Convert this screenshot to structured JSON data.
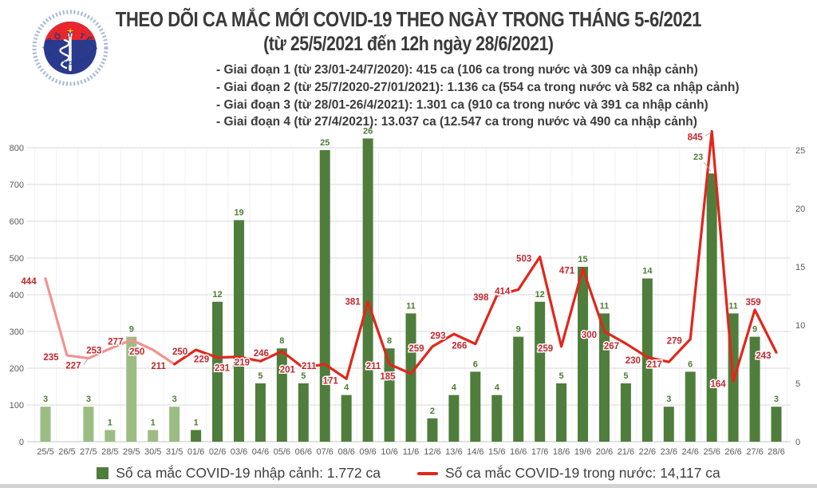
{
  "header": {
    "logo": {
      "top_text": "BỘ Y TẾ",
      "bottom_text": "MINISTRY OF HEALTH"
    },
    "title_line1": "THEO DÕI CA MẮC MỚI COVID-19 THEO NGÀY TRONG THÁNG 5-6/2021",
    "title_line2": "(từ 25/5/2021 đến 12h ngày 28/6/2021)",
    "phases": [
      "- Giai đoạn 1 (từ 23/01-24/7/2020): 415 ca (106 ca trong nước và 309 ca nhập cảnh)",
      "- Giai đoạn 2 (từ 25/7/2020-27/01/2021): 1.136 ca (554 ca trong nước và 582 ca nhập cảnh)",
      "- Giai đoạn 3 (từ 28/01-26/4/2021): 1.301 ca (910 ca trong nước và 391 ca nhập cảnh)",
      "- Giai đoạn 4 (từ 27/4/2021): 13.037 ca (12.547 ca trong nước và 490 ca nhập cảnh)"
    ]
  },
  "chart_data": {
    "type": "bar+line",
    "title": "THEO DÕI CA MẮC MỚI COVID-19 THEO NGÀY TRONG THÁNG 5-6/2021",
    "subtitle": "(từ 25/5/2021 đến 12h ngày 28/6/2021)",
    "categories": [
      "25/5",
      "26/5",
      "27/5",
      "28/5",
      "29/5",
      "30/5",
      "31/5",
      "01/6",
      "02/6",
      "03/6",
      "04/6",
      "05/6",
      "06/6",
      "07/6",
      "08/6",
      "09/6",
      "10/6",
      "11/6",
      "12/6",
      "13/6",
      "14/6",
      "15/6",
      "16/6",
      "17/6",
      "18/6",
      "19/6",
      "20/6",
      "21/6",
      "22/6",
      "23/6",
      "24/6",
      "25/6",
      "26/6",
      "27/6",
      "28/6"
    ],
    "series": [
      {
        "name": "Số ca mắc COVID-19 nhập cảnh",
        "type": "bar",
        "axis": "right",
        "values": [
          3,
          null,
          3,
          1,
          9,
          1,
          3,
          1,
          12,
          19,
          5,
          8,
          5,
          25,
          4,
          26,
          8,
          11,
          2,
          4,
          6,
          4,
          9,
          12,
          5,
          15,
          11,
          5,
          14,
          3,
          6,
          23,
          11,
          9,
          3
        ]
      },
      {
        "name": "Số ca mắc COVID-19 trong nước",
        "type": "line",
        "axis": "left",
        "values": [
          444,
          235,
          227,
          253,
          277,
          250,
          211,
          250,
          229,
          231,
          219,
          246,
          201,
          211,
          171,
          381,
          211,
          185,
          259,
          293,
          266,
          398,
          414,
          503,
          259,
          471,
          300,
          267,
          230,
          217,
          279,
          845,
          164,
          359,
          243
        ]
      }
    ],
    "left_axis": {
      "min": 0,
      "max": 800,
      "step": 100,
      "ticks": [
        0,
        100,
        200,
        300,
        400,
        500,
        600,
        700,
        800
      ]
    },
    "right_axis": {
      "min": 0,
      "max": 25,
      "step": 5,
      "ticks": [
        0,
        5,
        10,
        15,
        20,
        25
      ]
    },
    "split_note": "Dates 25/5-31/5 drawn in light colors, 01/6-28/6 in dark colors",
    "colors": {
      "may_bar": "#9bbd84",
      "jun_bar": "#4f7d3c",
      "may_line": "#f19390",
      "jun_line": "#e2261b",
      "bar_label": "#4e7d35",
      "line_label": "#c1272d",
      "axis_text": "#595959",
      "gridline": "#d9d9d9",
      "v_gridline": "#f2f2f2"
    },
    "legend_position": "bottom"
  },
  "legend": {
    "items": [
      {
        "label": "Số ca mắc COVID-19 nhập cảnh: 1.772 ca",
        "marker": "square",
        "color": "#4f7d3c"
      },
      {
        "label": "Số ca mắc COVID-19 trong nước: 14,117 ca",
        "marker": "line",
        "color": "#e2261b"
      }
    ]
  }
}
